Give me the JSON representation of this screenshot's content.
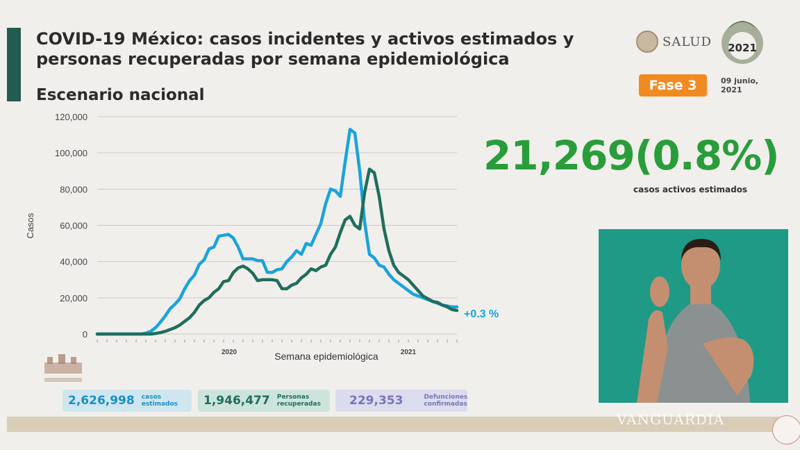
{
  "header": {
    "title": "COVID-19 México: casos incidentes y activos estimados y personas recuperadas por semana epidemiológica",
    "subtitle": "Escenario nacional",
    "brand": "SALUD",
    "phase": "Fase 3",
    "date": "09 junio, 2021",
    "logo_text": "2021"
  },
  "headline": {
    "value": "21,269(0.8%)",
    "label": "casos activos estimados"
  },
  "stats": {
    "cases": {
      "value": "2,626,998",
      "label": "casos estimados"
    },
    "recovered": {
      "value": "1,946,477",
      "label": "Personas recuperadas"
    },
    "deaths": {
      "value": "229,353",
      "label": "Defunciones confirmadas"
    }
  },
  "watermark": "VANGUARDIA",
  "colors": {
    "accent": "#2a9d3b",
    "phase": "#f28a22",
    "series_light": "#1aa3dc",
    "series_dark": "#1f6e5c"
  },
  "chart_data": {
    "type": "line",
    "xlabel": "Semana epidemiológica",
    "ylabel": "Casos",
    "ylim": [
      0,
      120000
    ],
    "yticks": [
      "0",
      "20,000",
      "40,000",
      "60,000",
      "80,000",
      "100,000",
      "120,000"
    ],
    "year_labels": [
      "2020",
      "2021"
    ],
    "x": [
      1,
      2,
      3,
      4,
      5,
      6,
      7,
      8,
      9,
      10,
      11,
      12,
      13,
      14,
      15,
      16,
      17,
      18,
      19,
      20,
      21,
      22,
      23,
      24,
      25,
      26,
      27,
      28,
      29,
      30,
      31,
      32,
      33,
      34,
      35,
      36,
      37,
      38,
      39,
      40,
      41,
      42,
      43,
      44,
      45,
      46,
      47,
      48,
      49,
      50,
      51,
      52,
      53,
      54,
      55,
      56,
      57,
      58,
      59,
      60,
      61,
      62,
      63,
      64,
      65,
      66,
      67,
      68,
      69,
      70,
      71,
      72,
      73,
      74,
      75
    ],
    "annotation": "+0.3 %",
    "series": [
      {
        "values": [
          0,
          0,
          0,
          0,
          0,
          0,
          0,
          0,
          0,
          0,
          500,
          1500,
          3500,
          6500,
          10000,
          14000,
          16500,
          19500,
          25000,
          29500,
          32500,
          38500,
          41000,
          47000,
          48000,
          54000,
          54500,
          55000,
          53000,
          48000,
          41500,
          41500,
          41500,
          40500,
          40500,
          34000,
          34000,
          35500,
          36000,
          40000,
          42500,
          46000,
          44000,
          50000,
          49000,
          55000,
          61000,
          72000,
          80000,
          79000,
          76000,
          95000,
          113000,
          111000,
          90000,
          62000,
          44000,
          42000,
          38000,
          37000,
          33000,
          30000,
          28000,
          26000,
          24000,
          22000,
          21000,
          20000,
          19000,
          18000,
          17000,
          16000,
          15500,
          15000,
          15000
        ]
      },
      {
        "values": [
          0,
          0,
          0,
          0,
          0,
          0,
          0,
          0,
          0,
          0,
          0,
          0,
          300,
          800,
          1500,
          2500,
          3500,
          5000,
          7000,
          9000,
          12000,
          16000,
          18500,
          20000,
          23000,
          25000,
          29000,
          29500,
          34000,
          36500,
          37500,
          36000,
          33500,
          29500,
          30000,
          30000,
          30000,
          29500,
          25000,
          25000,
          27000,
          28000,
          31000,
          33000,
          36000,
          35000,
          37000,
          38000,
          44000,
          48000,
          56000,
          63000,
          65000,
          60000,
          58000,
          78000,
          91000,
          89000,
          76000,
          58000,
          46000,
          38000,
          34000,
          32000,
          30000,
          27000,
          24000,
          21000,
          19500,
          18000,
          17500,
          16000,
          15000,
          13500,
          13000
        ]
      }
    ]
  }
}
